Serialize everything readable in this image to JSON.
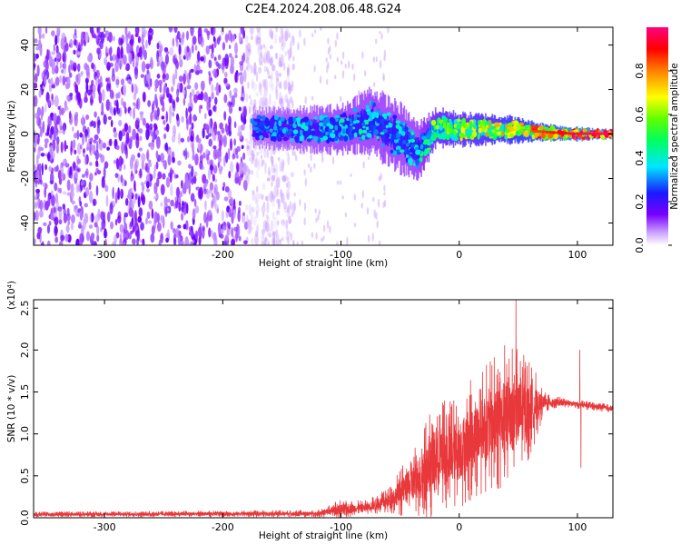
{
  "title": "C2E4.2024.208.06.48.G24",
  "chart_data": [
    {
      "type": "heatmap",
      "xlabel": "Height of straight line (km)",
      "ylabel": "Frequency (Hz)",
      "xlim": [
        -360,
        130
      ],
      "ylim": [
        -50,
        48
      ],
      "x_ticks": [
        -300,
        -200,
        -100,
        0,
        100
      ],
      "x_tick_labels": [
        "-300",
        "-200",
        "-100",
        "0",
        "100"
      ],
      "y_ticks": [
        -40,
        -20,
        0,
        20,
        40
      ],
      "y_tick_labels": [
        "-40",
        "-20",
        "0",
        "20",
        "40"
      ],
      "colorbar": {
        "label": "Normalized spectral amplitude",
        "range": [
          0.0,
          1.0
        ],
        "ticks": [
          0.0,
          0.2,
          0.4,
          0.6,
          0.8
        ],
        "tick_labels": [
          "0.0",
          "0.2",
          "0.4",
          "0.6",
          "0.8"
        ]
      },
      "noise_region": {
        "x_range": [
          -360,
          -180
        ],
        "freq_range": [
          -50,
          48
        ],
        "amplitude": 0.15
      },
      "signal_track": [
        {
          "x": -175,
          "freq": 3,
          "width": 8,
          "amplitude": 0.3
        },
        {
          "x": -140,
          "freq": 2,
          "width": 9,
          "amplitude": 0.35
        },
        {
          "x": -100,
          "freq": 2,
          "width": 10,
          "amplitude": 0.4
        },
        {
          "x": -75,
          "freq": 6,
          "width": 14,
          "amplitude": 0.4
        },
        {
          "x": -50,
          "freq": -2,
          "width": 14,
          "amplitude": 0.4
        },
        {
          "x": -35,
          "freq": -8,
          "width": 12,
          "amplitude": 0.4
        },
        {
          "x": -20,
          "freq": 3,
          "width": 8,
          "amplitude": 0.6
        },
        {
          "x": 0,
          "freq": 2,
          "width": 7,
          "amplitude": 0.65
        },
        {
          "x": 40,
          "freq": 2,
          "width": 6,
          "amplitude": 0.75
        },
        {
          "x": 65,
          "freq": 1,
          "width": 4,
          "amplitude": 0.85
        },
        {
          "x": 95,
          "freq": 0,
          "width": 3,
          "amplitude": 0.95
        },
        {
          "x": 130,
          "freq": 0,
          "width": 2,
          "amplitude": 1.0
        }
      ]
    },
    {
      "type": "line",
      "xlabel": "Height of straight line (km)",
      "ylabel": "SNR (10 * v/v)",
      "y_multiplier": "(x10⁴)",
      "xlim": [
        -360,
        130
      ],
      "ylim": [
        0,
        2.6
      ],
      "x_ticks": [
        -300,
        -200,
        -100,
        0,
        100
      ],
      "x_tick_labels": [
        "-300",
        "-200",
        "-100",
        "0",
        "100"
      ],
      "y_ticks": [
        0.0,
        0.5,
        1.0,
        1.5,
        2.0,
        2.5
      ],
      "y_tick_labels": [
        "0.0",
        "0.5",
        "1.0",
        "1.5",
        "2.0",
        "2.5"
      ],
      "color": "#e8383b",
      "envelope": [
        {
          "x": -360,
          "mean": 0.04,
          "amp": 0.03
        },
        {
          "x": -120,
          "mean": 0.05,
          "amp": 0.04
        },
        {
          "x": -100,
          "mean": 0.1,
          "amp": 0.12
        },
        {
          "x": -80,
          "mean": 0.12,
          "amp": 0.08
        },
        {
          "x": -60,
          "mean": 0.2,
          "amp": 0.15
        },
        {
          "x": -40,
          "mean": 0.4,
          "amp": 0.4
        },
        {
          "x": -20,
          "mean": 0.7,
          "amp": 0.7
        },
        {
          "x": 0,
          "mean": 0.8,
          "amp": 0.7
        },
        {
          "x": 20,
          "mean": 1.05,
          "amp": 0.75
        },
        {
          "x": 40,
          "mean": 1.2,
          "amp": 0.9
        },
        {
          "x": 60,
          "mean": 1.3,
          "amp": 0.6
        },
        {
          "x": 72,
          "mean": 1.38,
          "amp": 0.12
        },
        {
          "x": 90,
          "mean": 1.37,
          "amp": 0.05
        },
        {
          "x": 130,
          "mean": 1.3,
          "amp": 0.05
        }
      ],
      "spikes": [
        {
          "x": 48,
          "value": 2.6
        },
        {
          "x": 102,
          "value": 2.0
        },
        {
          "x": 103,
          "value": 0.6
        }
      ]
    }
  ]
}
